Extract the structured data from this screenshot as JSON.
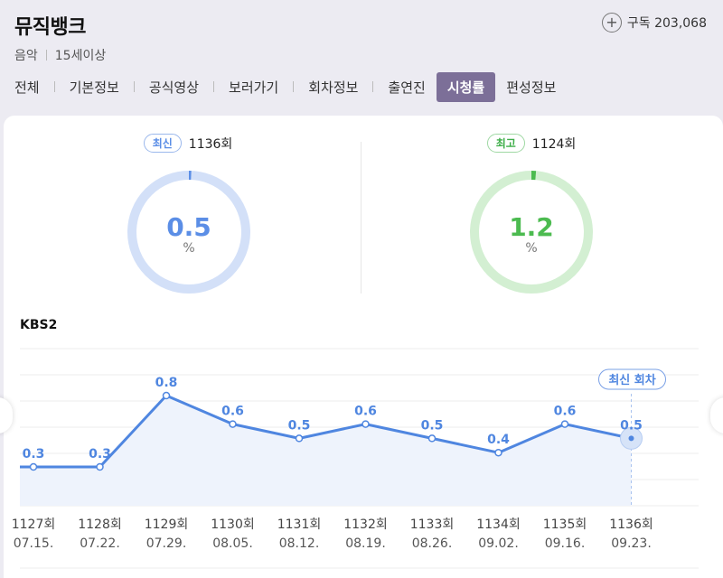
{
  "header": {
    "title": "뮤직뱅크",
    "subscribe_label": "구독 203,068",
    "genre": "음악",
    "rating": "15세이상"
  },
  "tabs": [
    {
      "label": "전체"
    },
    {
      "label": "기본정보"
    },
    {
      "label": "공식영상"
    },
    {
      "label": "보러가기"
    },
    {
      "label": "회차정보"
    },
    {
      "label": "출연진"
    },
    {
      "label": "시청률",
      "active": true
    },
    {
      "label": "편성정보"
    }
  ],
  "latest": {
    "badge": "최신",
    "episode": "1136회",
    "value": "0.5",
    "unit": "%",
    "fraction": 0.005,
    "ring_color": "#5b8ee6",
    "track_color": "#d3e0f8"
  },
  "best": {
    "badge": "최고",
    "episode": "1124회",
    "value": "1.2",
    "unit": "%",
    "fraction": 0.012,
    "ring_color": "#4cbb50",
    "track_color": "#d3efd2"
  },
  "chart": {
    "channel": "KBS2",
    "latest_label": "최신 회차"
  },
  "chart_data": {
    "type": "line",
    "x": [
      "1127회",
      "1128회",
      "1129회",
      "1130회",
      "1131회",
      "1132회",
      "1133회",
      "1134회",
      "1135회",
      "1136회"
    ],
    "dates": [
      "07.15.",
      "07.22.",
      "07.29.",
      "08.05.",
      "08.12.",
      "08.19.",
      "08.26.",
      "09.02.",
      "09.16.",
      "09.23."
    ],
    "values": [
      0.3,
      0.3,
      0.8,
      0.6,
      0.5,
      0.6,
      0.5,
      0.4,
      0.6,
      0.5
    ],
    "grid": true,
    "line_color": "#4f86e0"
  }
}
